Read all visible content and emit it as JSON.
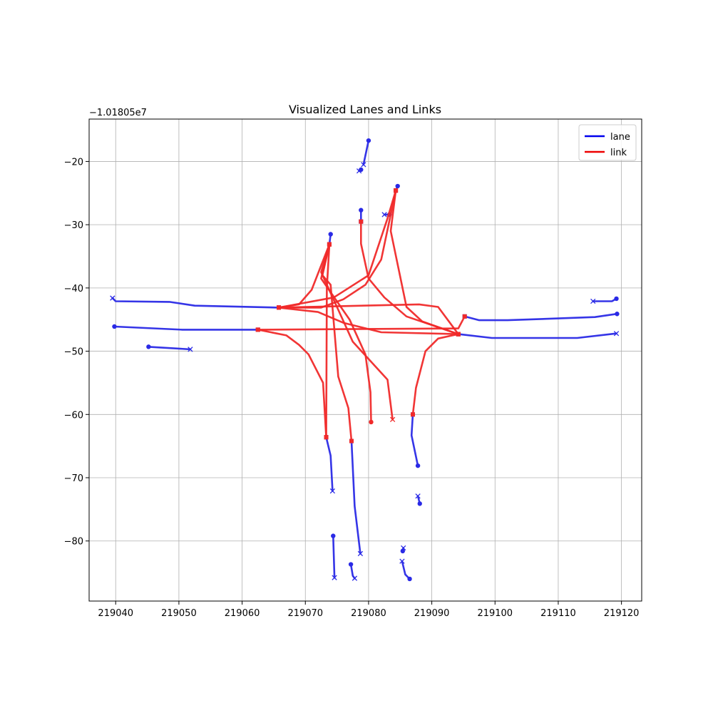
{
  "chart_data": {
    "type": "line",
    "title": "Visualized Lanes and Links",
    "xlabel": "",
    "ylabel": "",
    "y_offset_label": "−1.01805e7",
    "xlim": [
      219035.8,
      219123.2
    ],
    "ylim": [
      -89.5,
      -13.3
    ],
    "x_ticks": [
      219040,
      219050,
      219060,
      219070,
      219080,
      219090,
      219100,
      219110,
      219120
    ],
    "x_tick_labels": [
      "219040",
      "219050",
      "219060",
      "219070",
      "219080",
      "219090",
      "219100",
      "219110",
      "219120"
    ],
    "y_ticks": [
      -20,
      -30,
      -40,
      -50,
      -60,
      -70,
      -80
    ],
    "y_tick_labels": [
      "−20",
      "−30",
      "−40",
      "−50",
      "−60",
      "−70",
      "−80"
    ],
    "grid": true,
    "legend": {
      "placement": "top-right",
      "entries": [
        {
          "name": "lane",
          "color": "#0000ee"
        },
        {
          "name": "link",
          "color": "#ee0000"
        }
      ]
    },
    "colors": {
      "lane": "#2a2ae6",
      "link": "#f02a2a"
    },
    "lanes": [
      {
        "points": [
          [
            219039.8,
            -46.1
          ],
          [
            219050.5,
            -46.6
          ],
          [
            219062.5,
            -46.6
          ]
        ],
        "start": "circle",
        "end": "square"
      },
      {
        "points": [
          [
            219065.8,
            -43.1
          ],
          [
            219052.5,
            -42.8
          ],
          [
            219048.5,
            -42.2
          ],
          [
            219040,
            -42.1
          ],
          [
            219039.5,
            -41.6
          ]
        ],
        "start": "square",
        "end": "x"
      },
      {
        "points": [
          [
            219045.2,
            -49.3
          ],
          [
            219051.8,
            -49.7
          ]
        ],
        "start": "circle",
        "end": "x"
      },
      {
        "points": [
          [
            219094.2,
            -47.3
          ],
          [
            219099.5,
            -47.9
          ],
          [
            219113,
            -47.9
          ],
          [
            219119.2,
            -47.2
          ]
        ],
        "start": "square",
        "end": "x"
      },
      {
        "points": [
          [
            219119.3,
            -44.1
          ],
          [
            219115.8,
            -44.6
          ],
          [
            219102,
            -45.1
          ],
          [
            219097.5,
            -45.1
          ],
          [
            219095.2,
            -44.5
          ]
        ],
        "start": "circle",
        "end": "square"
      },
      {
        "points": [
          [
            219119.2,
            -41.7
          ],
          [
            219118.5,
            -42.1
          ],
          [
            219115.5,
            -42.1
          ]
        ],
        "start": "circle",
        "end": "x"
      },
      {
        "points": [
          [
            219073.3,
            -63.6
          ],
          [
            219074,
            -66.5
          ],
          [
            219074.3,
            -72.1
          ]
        ],
        "start": "square",
        "end": "x"
      },
      {
        "points": [
          [
            219074,
            -31.5
          ],
          [
            219073.8,
            -33.1
          ]
        ],
        "start": "circle",
        "end": "square"
      },
      {
        "points": [
          [
            219077.3,
            -64.2
          ],
          [
            219077.8,
            -74.5
          ],
          [
            219078.7,
            -82
          ]
        ],
        "start": "square",
        "end": "x"
      },
      {
        "points": [
          [
            219087.8,
            -68.1
          ],
          [
            219086.8,
            -63.3
          ],
          [
            219087,
            -60
          ]
        ],
        "start": "circle",
        "end": "square"
      },
      {
        "points": [
          [
            219078.8,
            -27.7
          ],
          [
            219078.8,
            -29.5
          ]
        ],
        "start": "circle",
        "end": "square"
      },
      {
        "points": [
          [
            219084.6,
            -23.9
          ],
          [
            219084.3,
            -24.6
          ]
        ],
        "start": "circle",
        "end": "square"
      },
      {
        "points": [
          [
            219080,
            -16.7
          ],
          [
            219079.2,
            -20.5
          ]
        ],
        "start": "circle",
        "end": "x"
      },
      {
        "points": [
          [
            219078.5,
            -21.5
          ],
          [
            219078.8,
            -21.3
          ]
        ],
        "start": "x",
        "end": "circle"
      },
      {
        "points": [
          [
            219082.5,
            -28.4
          ],
          [
            219083.3,
            -28.4
          ]
        ],
        "start": "x",
        "end": "circle"
      },
      {
        "points": [
          [
            219074.4,
            -79.2
          ],
          [
            219074.6,
            -85.8
          ]
        ],
        "start": "circle",
        "end": "x"
      },
      {
        "points": [
          [
            219077.2,
            -83.7
          ],
          [
            219077.5,
            -85.5
          ],
          [
            219077.8,
            -85.9
          ]
        ],
        "start": "circle",
        "end": "x"
      },
      {
        "points": [
          [
            219085.3,
            -83.2
          ],
          [
            219085.8,
            -85.3
          ],
          [
            219086.5,
            -86
          ]
        ],
        "start": "x",
        "end": "circle"
      },
      {
        "points": [
          [
            219085.4,
            -81.6
          ],
          [
            219085.5,
            -81.1
          ]
        ],
        "start": "circle",
        "end": "x"
      },
      {
        "points": [
          [
            219087.8,
            -72.9
          ],
          [
            219088.1,
            -74.1
          ]
        ],
        "start": "x",
        "end": "circle"
      }
    ],
    "links": [
      {
        "points": [
          [
            219065.8,
            -43.1
          ],
          [
            219088,
            -42.6
          ],
          [
            219091,
            -43
          ],
          [
            219094.2,
            -47.3
          ]
        ],
        "start": "square",
        "end": "square"
      },
      {
        "points": [
          [
            219062.5,
            -46.6
          ],
          [
            219094.2,
            -46.4
          ],
          [
            219095.2,
            -44.5
          ]
        ],
        "start": "square",
        "end": "square"
      },
      {
        "points": [
          [
            219065.8,
            -43.1
          ],
          [
            219069,
            -42.6
          ],
          [
            219071,
            -40.3
          ],
          [
            219073.8,
            -33.1
          ]
        ],
        "start": "square",
        "end": "square"
      },
      {
        "points": [
          [
            219065.8,
            -43.1
          ],
          [
            219072,
            -43.8
          ],
          [
            219076,
            -45.5
          ],
          [
            219082,
            -47
          ],
          [
            219094.2,
            -47.3
          ]
        ],
        "start": "square",
        "end": "square"
      },
      {
        "points": [
          [
            219062.5,
            -46.6
          ],
          [
            219067,
            -47.5
          ],
          [
            219069,
            -49
          ],
          [
            219070.5,
            -50.5
          ],
          [
            219072.8,
            -55
          ],
          [
            219073.3,
            -63.6
          ]
        ],
        "start": "square",
        "end": "square"
      },
      {
        "points": [
          [
            219065.8,
            -43.1
          ],
          [
            219072.5,
            -43.1
          ],
          [
            219076,
            -41.8
          ],
          [
            219079.5,
            -39.5
          ],
          [
            219082,
            -35.5
          ],
          [
            219084.3,
            -24.6
          ]
        ],
        "start": "square",
        "end": "square"
      },
      {
        "points": [
          [
            219073.8,
            -33.1
          ],
          [
            219073.4,
            -40
          ],
          [
            219073.3,
            -63.6
          ]
        ],
        "start": "square",
        "end": "square"
      },
      {
        "points": [
          [
            219073.8,
            -33.1
          ],
          [
            219072.5,
            -37.5
          ],
          [
            219075,
            -43
          ],
          [
            219077.5,
            -48.5
          ],
          [
            219083,
            -54.5
          ],
          [
            219083.8,
            -60.8
          ]
        ],
        "start": "square",
        "end": "x"
      },
      {
        "points": [
          [
            219073.8,
            -33.1
          ],
          [
            219072.7,
            -38
          ],
          [
            219074,
            -39.5
          ],
          [
            219075.2,
            -54
          ],
          [
            219076.8,
            -59
          ],
          [
            219077.3,
            -64.2
          ]
        ],
        "start": "square",
        "end": "square"
      },
      {
        "points": [
          [
            219073.8,
            -33.1
          ],
          [
            219072.5,
            -38.5
          ],
          [
            219077,
            -45
          ],
          [
            219079.5,
            -50.5
          ],
          [
            219080.3,
            -56.5
          ],
          [
            219080.4,
            -61.2
          ]
        ],
        "start": "square",
        "end": "circle"
      },
      {
        "points": [
          [
            219078.8,
            -29.5
          ],
          [
            219078.8,
            -33
          ],
          [
            219080,
            -38.5
          ],
          [
            219082.5,
            -41.5
          ],
          [
            219086,
            -44.5
          ],
          [
            219094.2,
            -47.3
          ]
        ],
        "start": "square",
        "end": "square"
      },
      {
        "points": [
          [
            219084.3,
            -24.6
          ],
          [
            219083.5,
            -31
          ],
          [
            219086,
            -43
          ],
          [
            219088.5,
            -45.3
          ],
          [
            219094.2,
            -47.3
          ]
        ],
        "start": "square",
        "end": "square"
      },
      {
        "points": [
          [
            219084.3,
            -24.6
          ],
          [
            219083,
            -29
          ],
          [
            219080,
            -38
          ],
          [
            219074.5,
            -41.5
          ],
          [
            219065.8,
            -43.1
          ]
        ],
        "start": "square",
        "end": "square"
      },
      {
        "points": [
          [
            219094.2,
            -47.3
          ],
          [
            219091,
            -48
          ],
          [
            219089,
            -50
          ],
          [
            219087.5,
            -55.8
          ],
          [
            219087,
            -60
          ]
        ],
        "start": "square",
        "end": "square"
      }
    ]
  }
}
